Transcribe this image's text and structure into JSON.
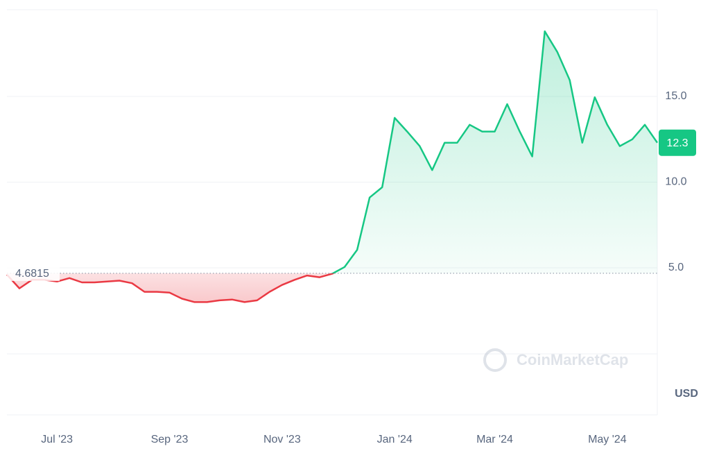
{
  "chart_data": {
    "type": "line",
    "categories": [
      null,
      null,
      null,
      null,
      "Jul '23",
      null,
      null,
      null,
      null,
      null,
      null,
      null,
      null,
      "Sep '23",
      null,
      null,
      null,
      null,
      null,
      null,
      null,
      null,
      "Nov '23",
      null,
      null,
      null,
      null,
      null,
      null,
      null,
      null,
      "Jan '24",
      null,
      null,
      null,
      null,
      null,
      null,
      null,
      "Mar '24",
      null,
      null,
      null,
      null,
      null,
      null,
      null,
      null,
      "May '24",
      null,
      null,
      null,
      null
    ],
    "series": [
      {
        "values": [
          4.6,
          3.8,
          4.3,
          4.3,
          4.2,
          4.4,
          4.15,
          4.15,
          4.2,
          4.25,
          4.1,
          3.6,
          3.6,
          3.55,
          3.2,
          3.0,
          3.0,
          3.1,
          3.15,
          3.0,
          3.1,
          3.6,
          4.0,
          4.3,
          4.55,
          4.45,
          4.65,
          5.05,
          6.05,
          9.1,
          9.7,
          13.75,
          12.95,
          12.1,
          10.7,
          12.3,
          12.3,
          13.35,
          12.95,
          12.95,
          14.55,
          12.95,
          11.5,
          18.8,
          17.6,
          15.95,
          12.3,
          14.95,
          13.35,
          12.1,
          12.5,
          13.35,
          12.3
        ]
      }
    ],
    "colors": {
      "above": "#16c784",
      "below": "#ea3943"
    },
    "baseline": 4.6815,
    "current_price": 12.3,
    "ylim": [
      0,
      20
    ],
    "yticks": [
      {
        "value": 5,
        "label": "5.0"
      },
      {
        "value": 10,
        "label": "10.0"
      },
      {
        "value": 15,
        "label": "15.0"
      }
    ],
    "y_label": "USD",
    "watermark": "CoinMarketCap",
    "grid": true
  }
}
